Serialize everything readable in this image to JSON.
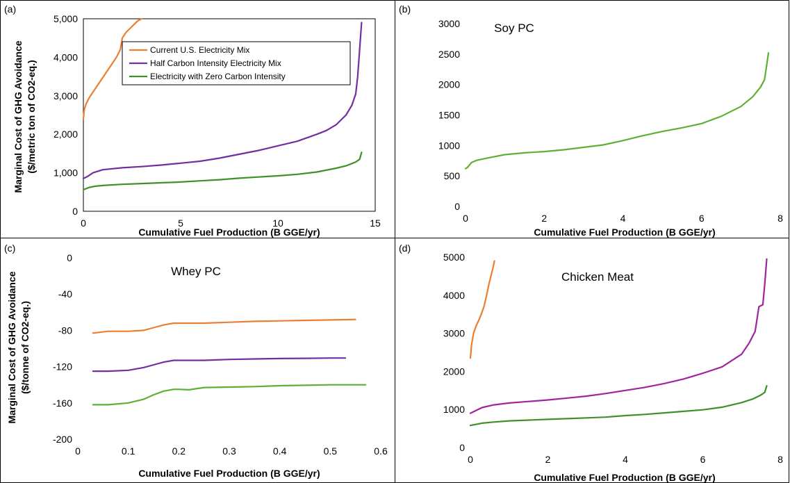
{
  "colors": {
    "current": "#ED7D31",
    "half": "#7030A0",
    "zero": "#3F8F2A",
    "soy": "#5DB032",
    "whey_zero": "#5DB032",
    "chicken_half": "#A0259A",
    "chicken_zero": "#3F8F2A"
  },
  "legend": {
    "current": "Current U.S. Electricity Mix",
    "half": "Half Carbon Intensity Electricity Mix",
    "zero": "Electricity with Zero Carbon Intensity"
  },
  "chart_data": [
    {
      "panel": "(a)",
      "type": "line",
      "title": "",
      "xlabel": "Cumulative Fuel Production (B GGE/yr)",
      "ylabel_line1": "Marginal Cost of GHG Avoidance",
      "ylabel_line2": "($/metric ton of CO2-eq.)",
      "xlim": [
        0,
        15
      ],
      "ylim": [
        0,
        5000
      ],
      "xticks": [
        "0",
        "5",
        "10",
        "15"
      ],
      "yticks": [
        "0",
        "1,000",
        "2,000",
        "3,000",
        "4,000",
        "5,000"
      ],
      "legend_position": "top-center",
      "series": [
        {
          "name": "Current U.S. Electricity Mix",
          "color_key": "current",
          "x": [
            0,
            0.05,
            0.15,
            0.3,
            0.5,
            0.7,
            0.9,
            1.1,
            1.3,
            1.5,
            1.7,
            1.9,
            2.0,
            2.2,
            2.4,
            2.6,
            2.8,
            3.0
          ],
          "y": [
            2400,
            2650,
            2800,
            2950,
            3100,
            3250,
            3400,
            3550,
            3700,
            3850,
            4000,
            4200,
            4500,
            4650,
            4750,
            4850,
            4950,
            5000
          ]
        },
        {
          "name": "Half Carbon Intensity Electricity Mix",
          "color_key": "half",
          "x": [
            0,
            0.2,
            0.5,
            1,
            2,
            3,
            4,
            5,
            6,
            7,
            8,
            9,
            10,
            11,
            12,
            12.5,
            13,
            13.5,
            13.8,
            14.0,
            14.1,
            14.2,
            14.3
          ],
          "y": [
            850,
            900,
            1000,
            1080,
            1130,
            1160,
            1200,
            1250,
            1300,
            1380,
            1480,
            1580,
            1700,
            1820,
            2000,
            2100,
            2250,
            2500,
            2750,
            3050,
            3500,
            4200,
            4900
          ]
        },
        {
          "name": "Electricity with Zero Carbon Intensity",
          "color_key": "zero",
          "x": [
            0,
            0.1,
            0.3,
            0.6,
            1,
            2,
            3,
            4,
            5,
            6,
            7,
            8,
            9,
            10,
            11,
            12,
            13,
            13.5,
            14.0,
            14.2,
            14.3
          ],
          "y": [
            560,
            580,
            620,
            650,
            670,
            700,
            720,
            740,
            760,
            790,
            820,
            860,
            890,
            920,
            960,
            1020,
            1120,
            1180,
            1280,
            1350,
            1530
          ]
        }
      ]
    },
    {
      "panel": "(b)",
      "type": "line",
      "title": "Soy PC",
      "xlabel": "Cumulative Fuel Production (B GGE/yr)",
      "xlim": [
        0,
        8
      ],
      "ylim": [
        0,
        3000
      ],
      "xticks": [
        "0",
        "2",
        "4",
        "6",
        "8"
      ],
      "yticks": [
        "0",
        "500",
        "1000",
        "1500",
        "2000",
        "2500",
        "3000"
      ],
      "series": [
        {
          "color_key": "soy",
          "x": [
            0,
            0.05,
            0.15,
            0.3,
            0.6,
            1.0,
            1.5,
            2.0,
            2.5,
            3.0,
            3.5,
            4.0,
            4.5,
            5.0,
            5.5,
            6.0,
            6.5,
            7.0,
            7.3,
            7.5,
            7.6,
            7.65,
            7.7
          ],
          "y": [
            620,
            640,
            720,
            760,
            800,
            850,
            880,
            900,
            930,
            970,
            1010,
            1080,
            1160,
            1230,
            1290,
            1360,
            1480,
            1640,
            1800,
            1960,
            2080,
            2300,
            2520
          ]
        }
      ]
    },
    {
      "panel": "(c)",
      "type": "line",
      "title": "Whey PC",
      "xlabel": "Cumulative Fuel Production (B GGE/yr)",
      "ylabel_line1": "Marginal Cost of GHG Avoidance",
      "ylabel_line2": "($/tonne of CO2-eq.)",
      "xlim": [
        0,
        0.6
      ],
      "ylim": [
        -200,
        0
      ],
      "xticks": [
        "0",
        "0.1",
        "0.2",
        "0.3",
        "0.4",
        "0.5",
        "0.6"
      ],
      "yticks": [
        "-200",
        "-160",
        "-120",
        "-80",
        "-40",
        "0"
      ],
      "series": [
        {
          "color_key": "current",
          "x": [
            0.03,
            0.06,
            0.1,
            0.13,
            0.15,
            0.17,
            0.19,
            0.2,
            0.25,
            0.3,
            0.35,
            0.4,
            0.45,
            0.5,
            0.55
          ],
          "y": [
            -83,
            -81,
            -81,
            -80,
            -77,
            -74,
            -72,
            -72,
            -72,
            -71,
            -70,
            -69.5,
            -69,
            -68.5,
            -68
          ]
        },
        {
          "color_key": "half",
          "x": [
            0.03,
            0.06,
            0.1,
            0.13,
            0.15,
            0.17,
            0.19,
            0.2,
            0.25,
            0.3,
            0.35,
            0.4,
            0.45,
            0.5,
            0.53
          ],
          "y": [
            -125,
            -125,
            -124,
            -121,
            -118,
            -115,
            -113,
            -113,
            -113,
            -112,
            -111.5,
            -111,
            -110.8,
            -110.5,
            -110.5
          ]
        },
        {
          "color_key": "whey_zero",
          "x": [
            0.03,
            0.06,
            0.1,
            0.13,
            0.15,
            0.17,
            0.19,
            0.2,
            0.22,
            0.25,
            0.3,
            0.35,
            0.4,
            0.45,
            0.5,
            0.57
          ],
          "y": [
            -162,
            -162,
            -160,
            -156,
            -151,
            -147,
            -145,
            -145,
            -145.5,
            -143,
            -142.5,
            -142,
            -141,
            -140.5,
            -140,
            -140
          ]
        }
      ]
    },
    {
      "panel": "(d)",
      "type": "line",
      "title": "Chicken Meat",
      "xlabel": "Cumulative Fuel Production (B GGE/yr)",
      "xlim": [
        0,
        8
      ],
      "ylim": [
        0,
        5000
      ],
      "xticks": [
        "0",
        "2",
        "4",
        "6",
        "8"
      ],
      "yticks": [
        "0",
        "1000",
        "2000",
        "3000",
        "4000",
        "5000"
      ],
      "series": [
        {
          "color_key": "current",
          "x": [
            0,
            0.03,
            0.08,
            0.15,
            0.22,
            0.28,
            0.35,
            0.42,
            0.48,
            0.53,
            0.58,
            0.62
          ],
          "y": [
            2350,
            2700,
            3000,
            3200,
            3350,
            3500,
            3700,
            4000,
            4300,
            4500,
            4700,
            4900
          ]
        },
        {
          "color_key": "chicken_half",
          "x": [
            0,
            0.1,
            0.3,
            0.6,
            1,
            1.5,
            2,
            2.5,
            3,
            3.5,
            4,
            4.5,
            5,
            5.5,
            6,
            6.5,
            7,
            7.2,
            7.35,
            7.45,
            7.55,
            7.6,
            7.65
          ],
          "y": [
            900,
            950,
            1050,
            1120,
            1170,
            1210,
            1250,
            1300,
            1350,
            1420,
            1500,
            1580,
            1680,
            1800,
            1950,
            2120,
            2450,
            2750,
            3050,
            3700,
            3750,
            4300,
            4950
          ]
        },
        {
          "color_key": "chicken_zero",
          "x": [
            0,
            0.1,
            0.3,
            0.6,
            1,
            1.5,
            2,
            2.5,
            3,
            3.5,
            4,
            4.5,
            5,
            5.5,
            6,
            6.5,
            7,
            7.3,
            7.5,
            7.6,
            7.65
          ],
          "y": [
            580,
            600,
            640,
            670,
            700,
            720,
            740,
            760,
            780,
            800,
            840,
            870,
            910,
            950,
            990,
            1060,
            1180,
            1280,
            1380,
            1450,
            1620
          ]
        }
      ]
    }
  ]
}
